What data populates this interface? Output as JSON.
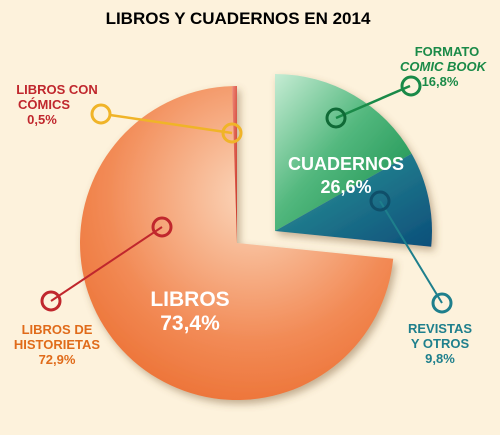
{
  "title": "LIBROS Y CUADERNOS EN 2014",
  "colors": {
    "background": "#fdf2dc",
    "title": "#9b1b1b",
    "libros_main": "#ee6a2a",
    "libros_light": "#f8c9a8",
    "libros_con_comics": "#d9412e",
    "cuadernos_green": "#1f9a5a",
    "cuadernos_blue": "#136a84",
    "label_red": "#c0272d",
    "label_orange": "#e06b1a",
    "label_green": "#1a8a48",
    "label_teal": "#1e7f8c",
    "marker_yellow": "#f0b428"
  },
  "chart_data": {
    "type": "pie",
    "title": "LIBROS Y CUADERNOS EN 2014",
    "groups": [
      {
        "name": "LIBROS",
        "value": 73.4,
        "value_label": "73,4%",
        "slices": [
          {
            "name": "LIBROS DE HISTORIETAS",
            "value": 72.9,
            "value_label": "72,9%"
          },
          {
            "name": "LIBROS CON CÓMICS",
            "value": 0.5,
            "value_label": "0,5%"
          }
        ]
      },
      {
        "name": "CUADERNOS",
        "value": 26.6,
        "value_label": "26,6%",
        "exploded": true,
        "slices": [
          {
            "name": "FORMATO COMIC BOOK",
            "value": 16.8,
            "value_label": "16,8%"
          },
          {
            "name": "REVISTAS Y OTROS",
            "value": 9.8,
            "value_label": "9,8%"
          }
        ]
      }
    ]
  },
  "callouts": {
    "libros_con_comics": {
      "line1": "LIBROS CON",
      "line2": "CÓMICS",
      "value": "0,5%"
    },
    "formato": {
      "line1": "FORMATO",
      "line2": "COMIC BOOK",
      "value": "16,8%"
    },
    "historietas": {
      "line1": "LIBROS DE",
      "line2": "HISTORIETAS",
      "value": "72,9%"
    },
    "revistas": {
      "line1": "REVISTAS",
      "line2": "Y OTROS",
      "value": "9,8%"
    }
  },
  "inner": {
    "libros_name": "LIBROS",
    "libros_value": "73,4%",
    "cuadernos_name": "CUADERNOS",
    "cuadernos_value": "26,6%"
  }
}
